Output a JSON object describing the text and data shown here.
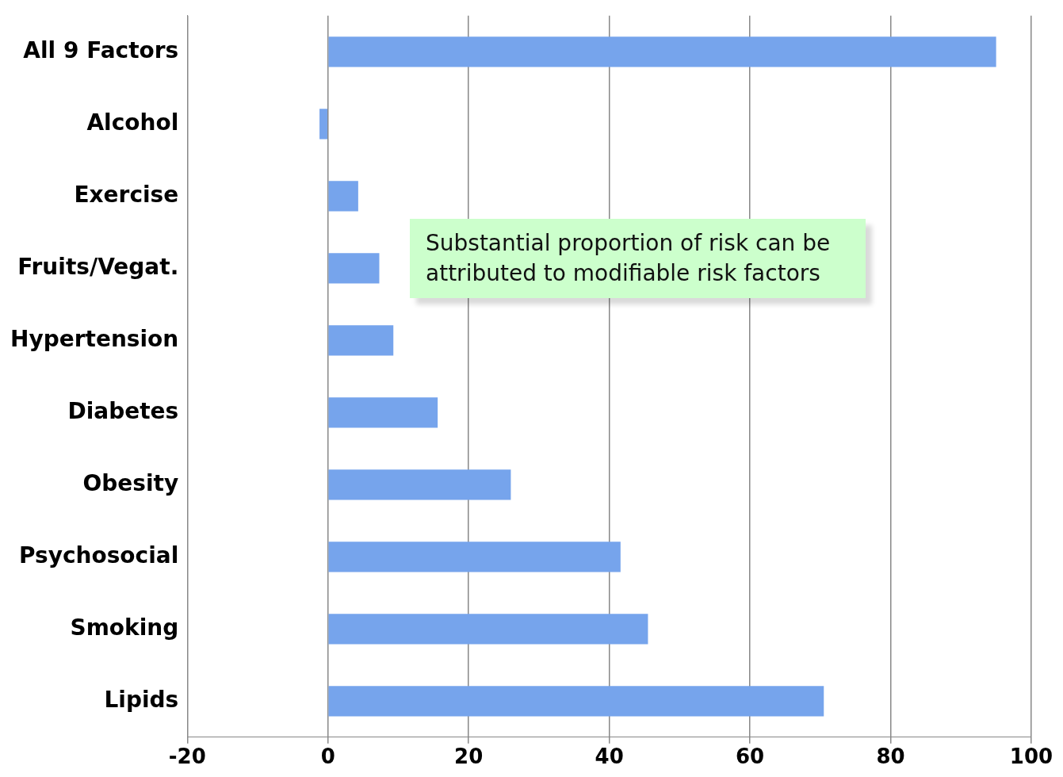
{
  "chart_data": {
    "type": "bar",
    "orientation": "horizontal",
    "categories": [
      "All 9 Factors",
      "Alcohol",
      "Exercise",
      "Fruits/Vegat.",
      "Hypertension",
      "Diabetes",
      "Obesity",
      "Psychosocial",
      "Smoking",
      "Lipids"
    ],
    "values": [
      95,
      -1.2,
      4.3,
      7.3,
      9.3,
      15.6,
      26,
      41.6,
      45.5,
      70.5
    ],
    "color": "#76a4ec",
    "xlim": [
      -20,
      100
    ],
    "xticks": [
      -20,
      0,
      20,
      40,
      60,
      80,
      100
    ],
    "grid": "x",
    "annotations": [
      "Substantial proportion of risk can be attributed to modifiable risk factors"
    ]
  }
}
